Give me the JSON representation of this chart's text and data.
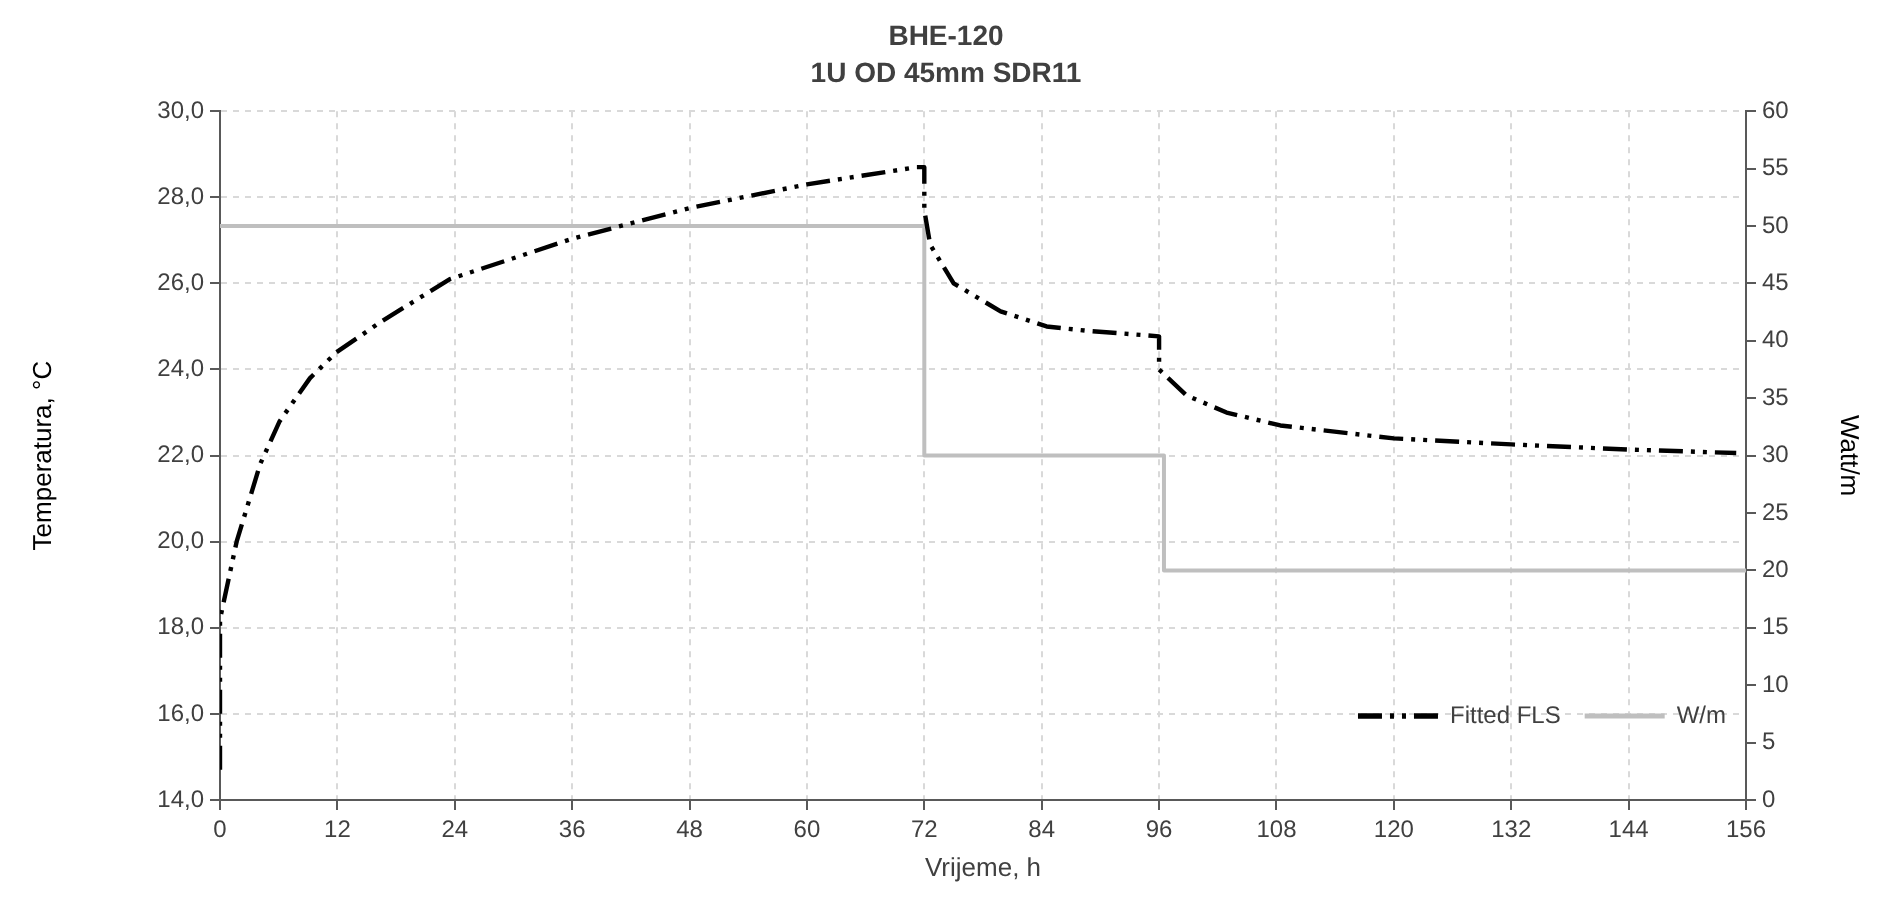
{
  "chart_data": {
    "type": "line",
    "title": "BHE-120",
    "subtitle": "1U OD 45mm SDR11",
    "xlabel": "Vrijeme, h",
    "ylabel": "Temperatura, °C",
    "y2label": "Watt/m",
    "xlim": [
      0,
      156
    ],
    "xticks": [
      0,
      12,
      24,
      36,
      48,
      60,
      72,
      84,
      96,
      108,
      120,
      132,
      144,
      156
    ],
    "ylim": [
      14,
      30
    ],
    "yticks": [
      {
        "value": 14,
        "label": "14,0"
      },
      {
        "value": 16,
        "label": "16,0"
      },
      {
        "value": 18,
        "label": "18,0"
      },
      {
        "value": 20,
        "label": "20,0"
      },
      {
        "value": 22,
        "label": "22,0"
      },
      {
        "value": 24,
        "label": "24,0"
      },
      {
        "value": 26,
        "label": "26,0"
      },
      {
        "value": 28,
        "label": "28,0"
      },
      {
        "value": 30,
        "label": "30,0"
      }
    ],
    "y2lim": [
      0,
      60
    ],
    "y2ticks": [
      0,
      5,
      10,
      15,
      20,
      25,
      30,
      35,
      40,
      45,
      50,
      55,
      60
    ],
    "grid": true,
    "legend": "bottom right",
    "series": [
      {
        "name": "Fitted FLS",
        "color": "#000000",
        "line_style": "dashed",
        "x": [
          0,
          0,
          1.7,
          4.1,
          6.1,
          9.2,
          11.9,
          16.4,
          23.5,
          36.2,
          48,
          60,
          71.2,
          72,
          72,
          72.6,
          75,
          79.8,
          84.5,
          88.6,
          96,
          96,
          98.8,
          102.9,
          108.4,
          120,
          132,
          144,
          155
        ],
        "values": [
          14.7,
          18.2,
          20.0,
          21.8,
          22.8,
          23.8,
          24.4,
          25.1,
          26.1,
          27.05,
          27.75,
          28.3,
          28.7,
          28.7,
          27.7,
          26.9,
          26.0,
          25.35,
          25.0,
          24.9,
          24.77,
          24.0,
          23.4,
          23.0,
          22.7,
          22.4,
          22.26,
          22.14,
          22.06
        ]
      },
      {
        "name": "W/m",
        "type": "step",
        "axis": "y2",
        "color": "#bfbfbf",
        "x": [
          0,
          72,
          96.5,
          156
        ],
        "values": [
          50,
          30,
          20,
          20
        ]
      }
    ]
  }
}
